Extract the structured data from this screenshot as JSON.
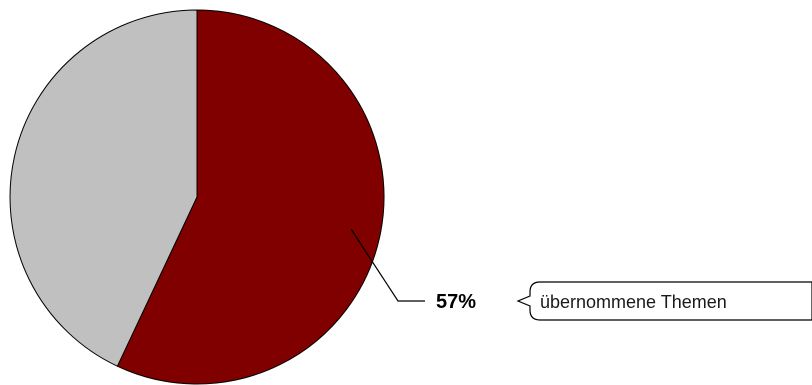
{
  "chart_data": {
    "type": "pie",
    "slices": [
      {
        "value": 57,
        "color": "#800000"
      },
      {
        "value": 43,
        "color": "#c0c0c0"
      }
    ],
    "annotation": {
      "value_label": "57%",
      "text": "übernommene Themen"
    },
    "edge_color": "#000000"
  }
}
